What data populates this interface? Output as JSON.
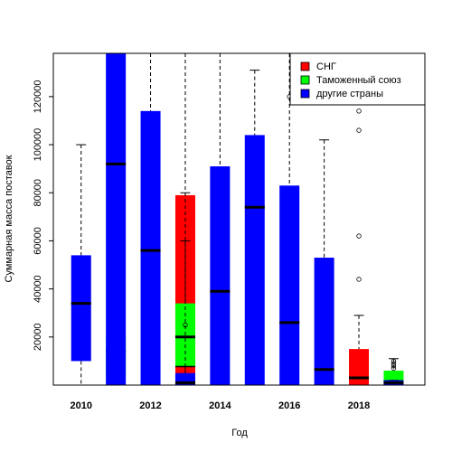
{
  "chart_data": {
    "type": "box",
    "title": "",
    "xlabel": "Год",
    "ylabel": "Суммарная масса поставок",
    "xlim": [
      2009.2,
      2019.9
    ],
    "ylim": [
      0,
      138000
    ],
    "x_ticks": [
      2010,
      2012,
      2014,
      2016,
      2018
    ],
    "y_ticks": [
      20000,
      40000,
      60000,
      80000,
      100000,
      120000
    ],
    "legend_position": "top-right",
    "series": [
      {
        "name": "СНГ",
        "color": "#ff0000",
        "boxes": [
          {
            "x": 2013,
            "q1": 0,
            "median": 8000,
            "q3": 79000,
            "whisker_low": 0,
            "whisker_high": 80000,
            "outliers": []
          },
          {
            "x": 2018,
            "q1": 0,
            "median": 3000,
            "q3": 15000,
            "whisker_low": 0,
            "whisker_high": 29000,
            "outliers": [
              44000,
              62000,
              106000,
              114000
            ]
          }
        ]
      },
      {
        "name": "Таможенный союз",
        "color": "#00ff00",
        "boxes": [
          {
            "x": 2011,
            "q1": 3000,
            "median": 14000,
            "q3": 20000,
            "whisker_low": 0,
            "whisker_high": 20000,
            "outliers": []
          },
          {
            "x": 2013,
            "q1": 8000,
            "median": 20000,
            "q3": 34000,
            "whisker_low": 0,
            "whisker_high": 60000,
            "outliers": [
              25000
            ]
          },
          {
            "x": 2019,
            "q1": 1000,
            "median": 1500,
            "q3": 6000,
            "whisker_low": 0,
            "whisker_high": 11000,
            "outliers": [
              7000,
              8000,
              9000,
              10000
            ]
          }
        ]
      },
      {
        "name": "другие страны",
        "color": "#0000ff",
        "boxes": [
          {
            "x": 2010,
            "q1": 10000,
            "median": 34000,
            "q3": 54000,
            "whisker_low": 0,
            "whisker_high": 100000,
            "outliers": []
          },
          {
            "x": 2011,
            "q1": 0,
            "median": 92000,
            "q3": 138000,
            "whisker_low": 0,
            "whisker_high": 138000,
            "outliers": []
          },
          {
            "x": 2012,
            "q1": 0,
            "median": 56000,
            "q3": 114000,
            "whisker_low": 0,
            "whisker_high": 138000,
            "outliers": []
          },
          {
            "x": 2013,
            "q1": 0,
            "median": 1000,
            "q3": 5000,
            "whisker_low": 0,
            "whisker_high": 138000,
            "outliers": []
          },
          {
            "x": 2014,
            "q1": 0,
            "median": 39000,
            "q3": 91000,
            "whisker_low": 0,
            "whisker_high": 138000,
            "outliers": []
          },
          {
            "x": 2015,
            "q1": 0,
            "median": 74000,
            "q3": 104000,
            "whisker_low": 0,
            "whisker_high": 131000,
            "outliers": []
          },
          {
            "x": 2016,
            "q1": 0,
            "median": 26000,
            "q3": 83000,
            "whisker_low": 0,
            "whisker_high": 138000,
            "outliers": [
              120000
            ]
          },
          {
            "x": 2017,
            "q1": 0,
            "median": 6500,
            "q3": 53000,
            "whisker_low": 0,
            "whisker_high": 102000,
            "outliers": []
          },
          {
            "x": 2019,
            "q1": 0,
            "median": 1000,
            "q3": 2000,
            "whisker_low": 0,
            "whisker_high": 2000,
            "outliers": []
          }
        ]
      }
    ]
  }
}
